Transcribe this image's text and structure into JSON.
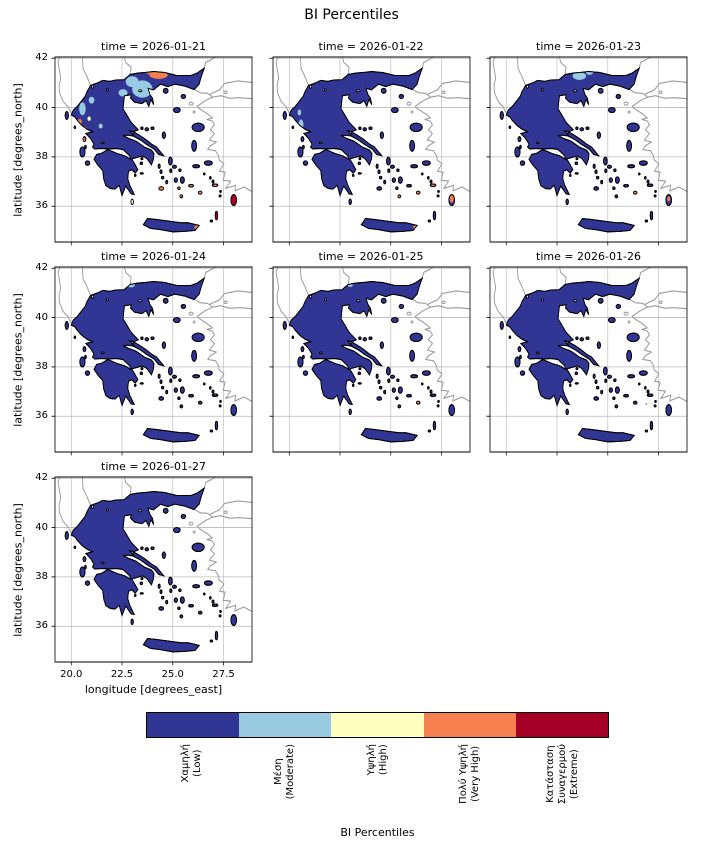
{
  "title": "BI Percentiles",
  "axes": {
    "xlabel": "longitude [degrees_east]",
    "ylabel": "latitude [degrees_north]",
    "xtick_labels": [
      "20.0",
      "22.5",
      "25.0",
      "27.5"
    ],
    "xtick_values": [
      20.0,
      22.5,
      25.0,
      27.5
    ],
    "ytick_labels": [
      "42",
      "40",
      "38",
      "36"
    ],
    "ytick_values": [
      42,
      40,
      38,
      36
    ]
  },
  "facets": [
    {
      "title": "time = 2026-01-21",
      "anomalies": [
        [
          23.5,
          40.75,
          0.5,
          0.35,
          1,
          1
        ],
        [
          23.0,
          41.05,
          0.32,
          0.22,
          1,
          1
        ],
        [
          22.55,
          40.6,
          0.22,
          0.15,
          1,
          1
        ],
        [
          24.3,
          41.32,
          0.45,
          0.16,
          3,
          1
        ],
        [
          23.9,
          41.44,
          0.25,
          0.1,
          3,
          1
        ],
        [
          20.55,
          39.95,
          0.16,
          0.26,
          1,
          1
        ],
        [
          21.0,
          40.3,
          0.14,
          0.14,
          1,
          1
        ],
        [
          20.42,
          39.42,
          0.1,
          0.12,
          3,
          1
        ],
        [
          20.68,
          39.12,
          0.09,
          0.1,
          3,
          1
        ],
        [
          20.88,
          39.55,
          0.08,
          0.09,
          2,
          1
        ],
        [
          21.45,
          39.25,
          0.1,
          0.1,
          1,
          1
        ],
        [
          20.72,
          38.82,
          0.08,
          0.1,
          2,
          1
        ],
        [
          20.62,
          38.7,
          0.07,
          0.08,
          3,
          0
        ],
        [
          24.43,
          36.72,
          0.13,
          0.08,
          3,
          0
        ],
        [
          25.42,
          36.4,
          0.08,
          0.07,
          3,
          0
        ],
        [
          25.3,
          36.73,
          0.07,
          0.06,
          3,
          0
        ],
        [
          26.35,
          36.55,
          0.09,
          0.07,
          3,
          0
        ],
        [
          27.08,
          36.85,
          0.15,
          0.06,
          3,
          0
        ],
        [
          28.0,
          36.25,
          0.15,
          0.23,
          4,
          0
        ],
        [
          27.15,
          35.62,
          0.07,
          0.18,
          4,
          0
        ],
        [
          26.2,
          35.15,
          0.14,
          0.09,
          3,
          1
        ],
        [
          25.9,
          36.83,
          0.12,
          0.06,
          3,
          0
        ],
        [
          23.0,
          36.18,
          0.06,
          0.11,
          2,
          0
        ]
      ]
    },
    {
      "title": "time = 2026-01-22",
      "anomalies": [
        [
          20.58,
          39.3,
          0.12,
          0.22,
          1,
          1
        ],
        [
          20.5,
          39.8,
          0.09,
          0.12,
          1,
          1
        ],
        [
          25.42,
          36.4,
          0.08,
          0.06,
          3,
          0
        ],
        [
          26.35,
          36.55,
          0.08,
          0.06,
          3,
          0
        ],
        [
          27.08,
          36.85,
          0.12,
          0.05,
          3,
          0
        ],
        [
          28.0,
          36.3,
          0.1,
          0.16,
          3,
          0
        ],
        [
          26.2,
          35.15,
          0.1,
          0.07,
          3,
          1
        ]
      ]
    },
    {
      "title": "time = 2026-01-23",
      "anomalies": [
        [
          23.6,
          41.28,
          0.33,
          0.16,
          1,
          1
        ],
        [
          24.1,
          41.42,
          0.18,
          0.09,
          1,
          1
        ],
        [
          26.35,
          36.55,
          0.07,
          0.05,
          3,
          0
        ],
        [
          28.0,
          36.3,
          0.07,
          0.1,
          3,
          0
        ]
      ]
    },
    {
      "title": "time = 2026-01-24",
      "anomalies": [
        [
          22.95,
          41.32,
          0.18,
          0.1,
          1,
          1
        ]
      ]
    },
    {
      "title": "time = 2026-01-25",
      "anomalies": [
        [
          23.0,
          41.32,
          0.13,
          0.08,
          1,
          1
        ],
        [
          20.68,
          39.1,
          0.07,
          0.08,
          1,
          1
        ],
        [
          26.35,
          36.55,
          0.06,
          0.05,
          3,
          0
        ]
      ]
    },
    {
      "title": "time = 2026-01-26",
      "anomalies": [
        [
          26.9,
          36.5,
          0.05,
          0.04,
          3,
          0
        ]
      ]
    },
    {
      "title": "time = 2026-01-27",
      "anomalies": []
    }
  ],
  "colorbar": {
    "label": "BI Percentiles",
    "categories": [
      {
        "label": "Χαμηλή (Low)",
        "lines": [
          "Χαμηλή",
          "(Low)"
        ],
        "color": "#313695"
      },
      {
        "label": "Μέση (Moderate)",
        "lines": [
          "Μέση",
          "(Moderate)"
        ],
        "color": "#98cae1"
      },
      {
        "label": "Υψηλή (High)",
        "lines": [
          "Υψηλή",
          "(High)"
        ],
        "color": "#ffffbf"
      },
      {
        "label": "Πολύ Υψηλή (Very High)",
        "lines": [
          "Πολύ Υψηλή",
          "(Very High)"
        ],
        "color": "#f67f4f"
      },
      {
        "label": "Κατάσταση Συναγερμού (Extreme)",
        "lines": [
          "Κατάσταση",
          "Συναγερμού",
          "(Extreme)"
        ],
        "color": "#a50026"
      }
    ]
  },
  "chart_data": {
    "type": "heatmap",
    "subtype": "categorical map facets (choropleth of Greece)",
    "title": "BI Percentiles",
    "region": "Greece",
    "facet_variable": "time",
    "facet_values": [
      "2026-01-21",
      "2026-01-22",
      "2026-01-23",
      "2026-01-24",
      "2026-01-25",
      "2026-01-26",
      "2026-01-27"
    ],
    "grid_layout": "3 columns x 3 rows, 7 panels used",
    "xlabel": "longitude [degrees_east]",
    "ylabel": "latitude [degrees_north]",
    "xlim": [
      19.2,
      28.9
    ],
    "ylim": [
      34.55,
      42.05
    ],
    "xticks": [
      20.0,
      22.5,
      25.0,
      27.5
    ],
    "yticks": [
      36,
      38,
      40,
      42
    ],
    "grid": true,
    "legend_position": "horizontal colorbar at bottom",
    "categories": [
      "Χαμηλή (Low)",
      "Μέση (Moderate)",
      "Υψηλή (High)",
      "Πολύ Υψηλή (Very High)",
      "Κατάσταση Συναγερμού (Extreme)"
    ],
    "colors": [
      "#313695",
      "#98cae1",
      "#ffffbf",
      "#f67f4f",
      "#a50026"
    ],
    "facet_summary": [
      {
        "time": "2026-01-21",
        "dominant": "Χαμηλή (Low)",
        "notable": "Moderate patches over central/northern Macedonia and Epirus coast; Very High band along the north-eastern border; Very High specks over Cyclades, Dodecanese and east Crete; Extreme on Rhodes and Karpathos"
      },
      {
        "time": "2026-01-22",
        "dominant": "Χαμηλή (Low)",
        "notable": "small Moderate area on the Epirus coast; scattered Very High specks over the southern Aegean islands"
      },
      {
        "time": "2026-01-23",
        "dominant": "Χαμηλή (Low)",
        "notable": "Moderate patch in eastern Macedonia; isolated Very High specks in the SE Aegean"
      },
      {
        "time": "2026-01-24",
        "dominant": "Χαμηλή (Low)",
        "notable": "tiny Moderate spot near the northern border"
      },
      {
        "time": "2026-01-25",
        "dominant": "Χαμηλή (Low)",
        "notable": "tiny Moderate spots in the north and on the west coast"
      },
      {
        "time": "2026-01-26",
        "dominant": "Χαμηλή (Low)",
        "notable": "almost entirely Low"
      },
      {
        "time": "2026-01-27",
        "dominant": "Χαμηλή (Low)",
        "notable": "entirely Low"
      }
    ]
  }
}
